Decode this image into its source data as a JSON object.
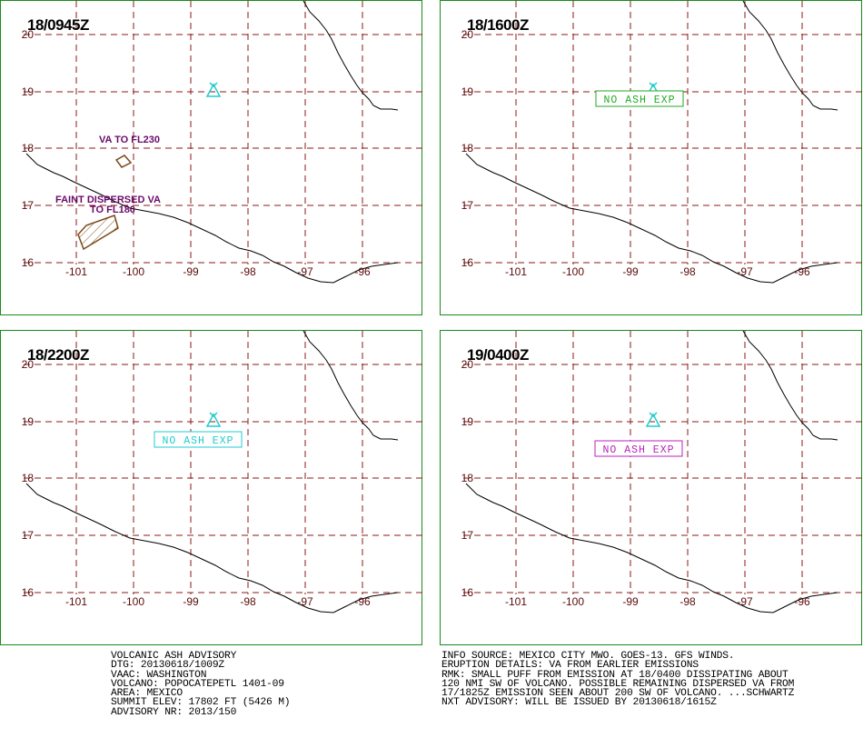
{
  "panels": [
    {
      "id": "p1",
      "time": "18/0945Z",
      "annotations": [
        "VA TO FL230",
        "FAINT DISPERSED VA",
        "TO FL180"
      ]
    },
    {
      "id": "p2",
      "time": "18/1600Z",
      "no_ash_label": "NO ASH EXP",
      "no_ash_color": "#22aa22"
    },
    {
      "id": "p3",
      "time": "18/2200Z",
      "no_ash_label": "NO ASH EXP",
      "no_ash_color": "#22cccc"
    },
    {
      "id": "p4",
      "time": "19/0400Z",
      "no_ash_label": "NO ASH EXP",
      "no_ash_color": "#bb22bb"
    }
  ],
  "grid": {
    "lon_labels": [
      "-101",
      "-100",
      "-99",
      "-98",
      "-97",
      "-96"
    ],
    "lat_labels": [
      "20",
      "19",
      "18",
      "17",
      "16"
    ],
    "grid_color": "#8b1a1a",
    "coast_color": "#000000",
    "volcano_color": "#22cccc",
    "ash_color": "#7a4a1a"
  },
  "advisory_left": [
    "VOLCANIC ASH ADVISORY",
    "DTG: 20130618/1009Z",
    "VAAC: WASHINGTON",
    "VOLCANO: POPOCATEPETL 1401-09",
    "AREA: MEXICO",
    "SUMMIT ELEV: 17802 FT (5426 M)",
    "ADVISORY NR: 2013/150"
  ],
  "advisory_right": [
    "INFO SOURCE: MEXICO CITY MWO. GOES-13. GFS WINDS.",
    "ERUPTION DETAILS: VA FROM EARLIER EMISSIONS",
    "RMK: SMALL PUFF FROM EMISSION AT 18/0400 DISSIPATING ABOUT",
    "120 NMI SW OF VOLCANO. POSSIBLE REMAINING DISPERSED VA FROM",
    "17/1825Z EMISSION SEEN ABOUT 200 SW OF VOLCANO. ...SCHWARTZ",
    "NXT ADVISORY: WILL BE ISSUED BY 20130618/1615Z"
  ]
}
